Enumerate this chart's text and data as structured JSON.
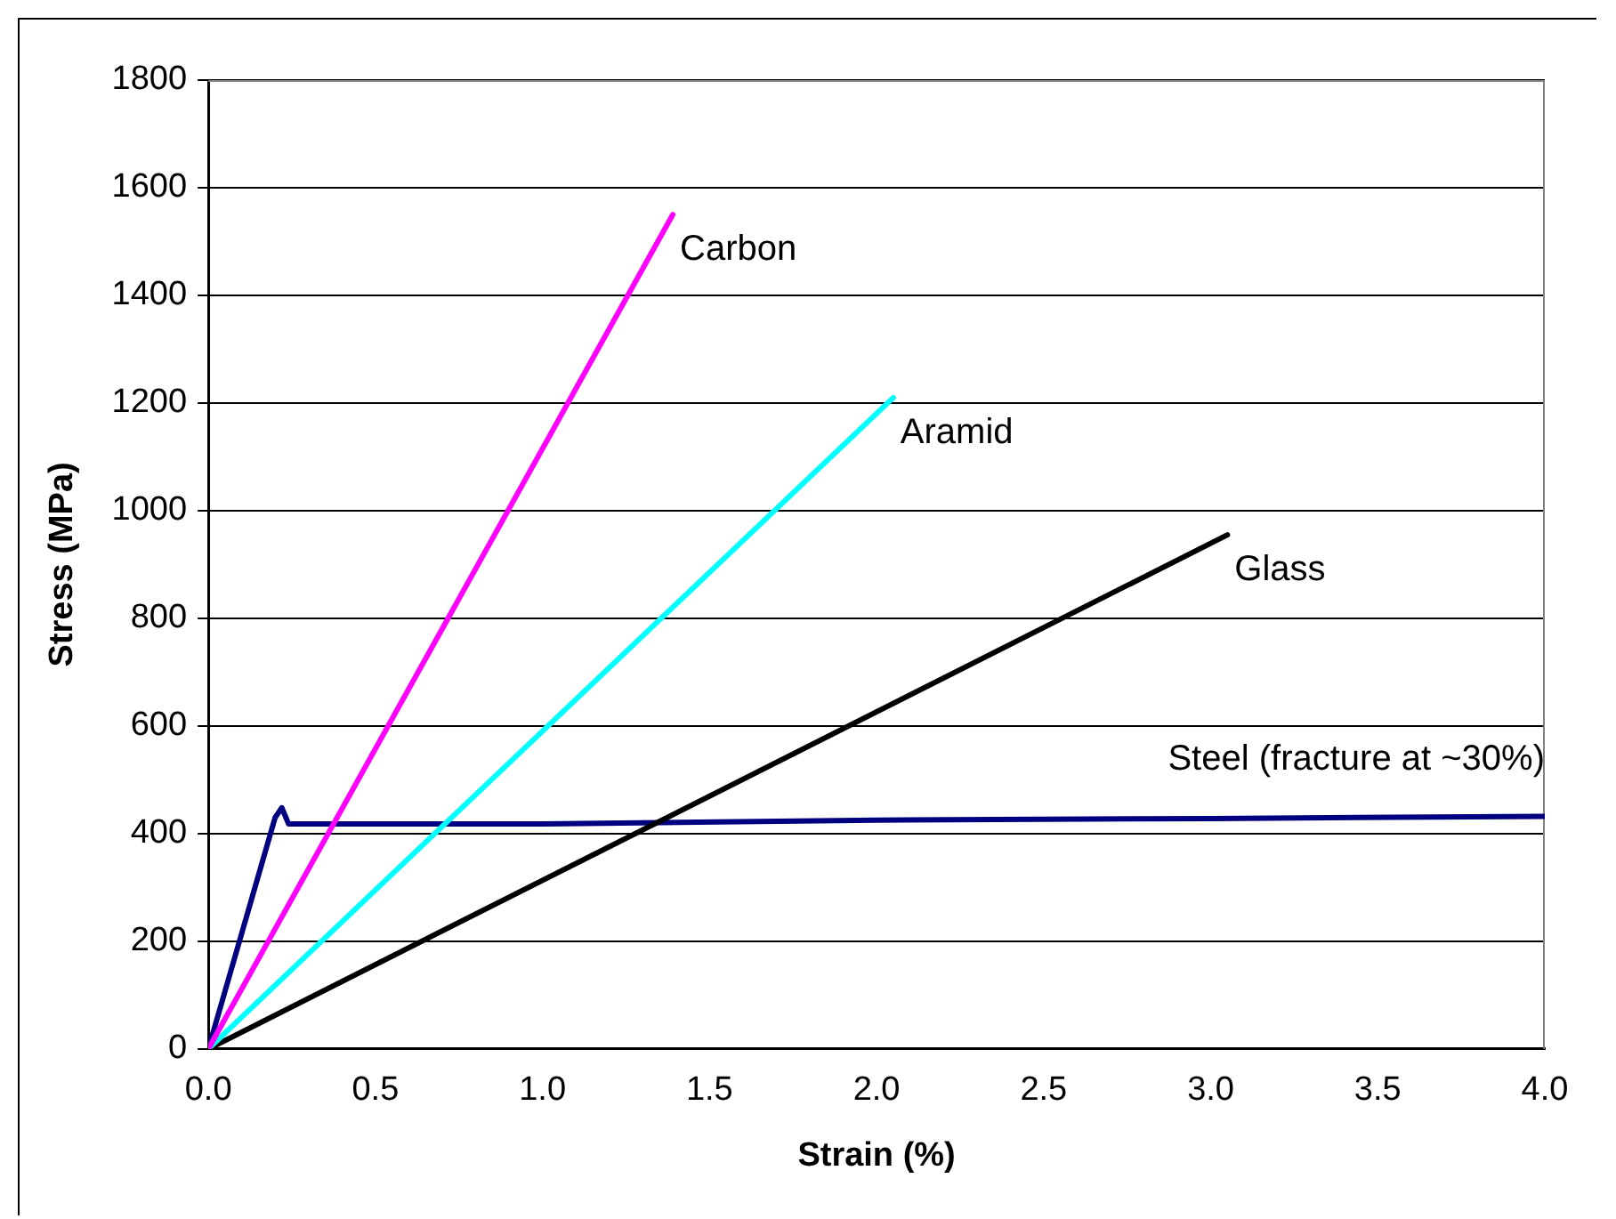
{
  "chart_data": {
    "type": "line",
    "xlabel": "Strain (%)",
    "ylabel": "Stress (MPa)",
    "xlim": [
      0,
      4
    ],
    "xticks": [
      {
        "value": 0,
        "label": "0.0"
      },
      0.5,
      {
        "value": 1,
        "label": "1.0"
      },
      1.5,
      {
        "value": 2,
        "label": "2.0"
      },
      2.5,
      {
        "value": 3,
        "label": "3.0"
      },
      3.5,
      {
        "value": 4,
        "label": "4.0"
      }
    ],
    "ylim": [
      0,
      1800
    ],
    "yticks": [
      0,
      200,
      400,
      600,
      800,
      1000,
      1200,
      1400,
      1600,
      1800
    ],
    "grid": "y",
    "legend": false,
    "marker": "none",
    "line_style": "solid",
    "series": [
      {
        "name": "Carbon",
        "color": "#ff00ff",
        "x": [
          0,
          1.39
        ],
        "values": [
          0,
          1550
        ]
      },
      {
        "name": "Aramid",
        "color": "#00ffff",
        "x": [
          0,
          2.05
        ],
        "values": [
          0,
          1210
        ]
      },
      {
        "name": "Glass",
        "color": "#000000",
        "x": [
          0,
          3.05
        ],
        "values": [
          0,
          955
        ]
      },
      {
        "name": "Steel (fracture at ~30%)",
        "color": "#000080",
        "x": [
          0,
          0.2,
          0.22,
          0.24,
          1.0,
          2.0,
          3.0,
          4.0
        ],
        "values": [
          0,
          430,
          448,
          418,
          418,
          425,
          428,
          432
        ]
      }
    ]
  }
}
